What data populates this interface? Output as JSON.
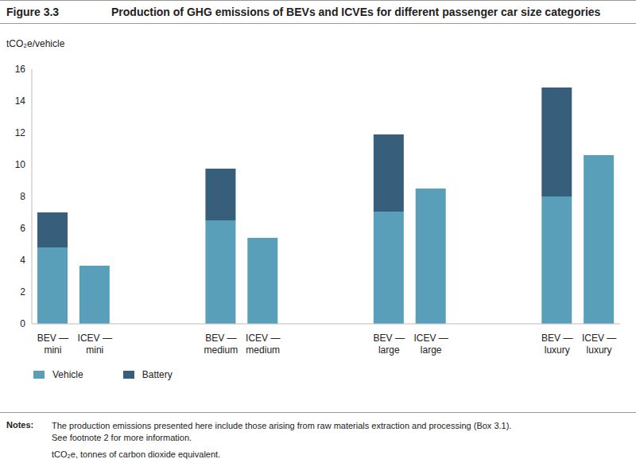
{
  "chart_data": {
    "type": "bar",
    "title": "Production of GHG emissions of BEVs and ICVEs for different passenger car size categories",
    "ylabel": "tCO₂e/vehicle",
    "categories": [
      "BEV — mini",
      "ICEV — mini",
      "BEV — medium",
      "ICEV — medium",
      "BEV — large",
      "ICEV — large",
      "BEV — luxury",
      "ICEV — luxury"
    ],
    "series": [
      {
        "name": "Vehicle",
        "color": "#5a9fba",
        "values": [
          4.8,
          3.65,
          6.5,
          5.4,
          7.05,
          8.5,
          8.0,
          10.6
        ]
      },
      {
        "name": "Battery",
        "color": "#375f7b",
        "values": [
          2.2,
          null,
          3.25,
          null,
          4.85,
          null,
          6.85,
          null
        ]
      }
    ],
    "ylim": [
      0,
      16
    ],
    "yticks": [
      0,
      2,
      4,
      6,
      8,
      10,
      12,
      14,
      16
    ],
    "stacked": true,
    "grid": false,
    "legend": "bottom-left",
    "annotations": [
      "Figure 3.3",
      "Notes:",
      "The production emissions presented here include those arising from raw materials extraction and processing (Box 3.1).",
      "See footnote 2 for more information.",
      "tCO₂e, tonnes of carbon dioxide equivalent."
    ]
  }
}
